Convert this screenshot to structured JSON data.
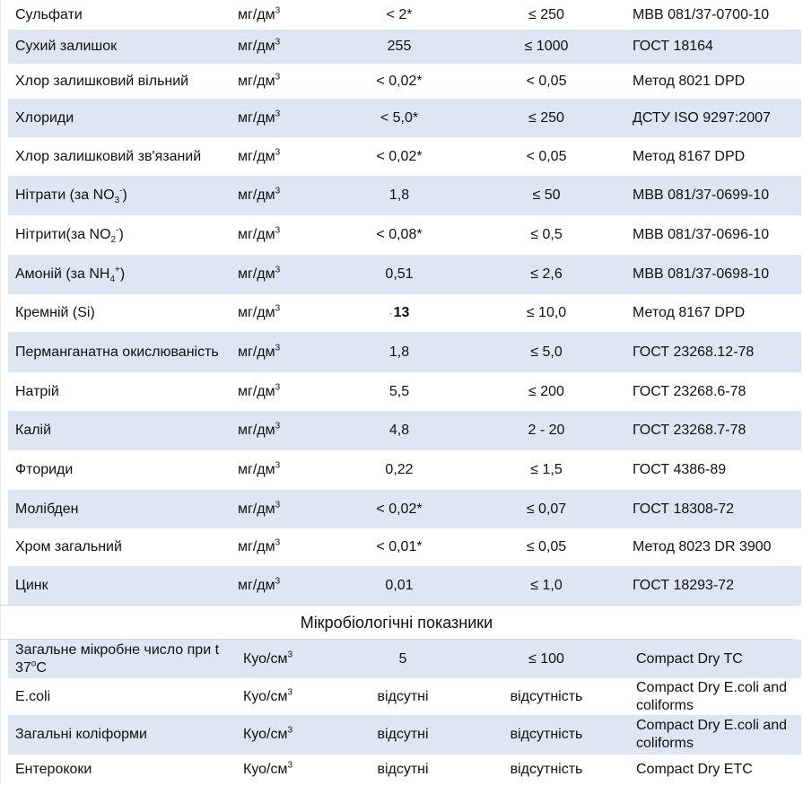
{
  "chemical": [
    {
      "name": "Сульфати",
      "unit": "мг/дм",
      "unit_sup": "3",
      "result": "< 2*",
      "norm": "≤ 250",
      "method": "МВВ 081/37-0700-10"
    },
    {
      "name": "Сухий залишок",
      "unit": "мг/дм",
      "unit_sup": "3",
      "result": "255",
      "norm": "≤ 1000",
      "method": "ГОСТ  18164"
    },
    {
      "name": "Хлор залишковий вільний",
      "unit": "мг/дм",
      "unit_sup": "3",
      "result": "< 0,02*",
      "norm": "< 0,05",
      "method": "Метод 8021 DPD"
    },
    {
      "name": "Хлориди",
      "unit": "мг/дм",
      "unit_sup": "3",
      "result": "< 5,0*",
      "norm": "≤ 250",
      "method": "ДСТУ ISO 9297:2007"
    },
    {
      "name": "Хлор залишковий зв'язаний",
      "unit": "мг/дм",
      "unit_sup": "3",
      "result": "< 0,02*",
      "norm": "< 0,05",
      "method": "Метод 8167 DPD"
    },
    {
      "name_pre": "Нітрати (за NO",
      "name_sub": "3",
      "name_sup": "-",
      "name_post": ")",
      "unit": "мг/дм",
      "unit_sup": "3",
      "result": "1,8",
      "norm": "≤ 50",
      "method": "МВВ 081/37-0699-10"
    },
    {
      "name_pre": "Нітрити(за NO",
      "name_sub": "2",
      "name_sup": "-",
      "name_post": ")",
      "unit": "мг/дм",
      "unit_sup": "3",
      "result": "< 0,08*",
      "norm": "≤ 0,5",
      "method": "МВВ 081/37-0696-10"
    },
    {
      "name_pre": "Амоній (за NH",
      "name_sub": "4",
      "name_sup": "+",
      "name_post": ")",
      "unit": "мг/дм",
      "unit_sup": "3",
      "result": "0,51",
      "norm": "≤ 2,6",
      "method": "МВВ 081/37-0698-10"
    },
    {
      "name": "Кремній (Si)",
      "unit": "мг/дм",
      "unit_sup": "3",
      "result": "13",
      "result_marker": "·",
      "norm": "≤ 10,0",
      "method": "Метод 8167 DPD"
    },
    {
      "name": "Перманганатна окислюваність",
      "unit": "мг/дм",
      "unit_sup": "3",
      "result": "1,8",
      "norm": "≤ 5,0",
      "method": "ГОСТ 23268.12-78"
    },
    {
      "name": "Натрій",
      "unit": "мг/дм",
      "unit_sup": "3",
      "result": "5,5",
      "norm": "≤ 200",
      "method": "ГОСТ 23268.6-78"
    },
    {
      "name": "Калій",
      "unit": "мг/дм",
      "unit_sup": "3",
      "result": "4,8",
      "norm": "2 - 20",
      "method": "ГОСТ 23268.7-78"
    },
    {
      "name": "Фториди",
      "unit": "мг/дм",
      "unit_sup": "3",
      "result": "0,22",
      "norm": "≤ 1,5",
      "method": "ГОСТ 4386-89"
    },
    {
      "name": "Молібден",
      "unit": "мг/дм",
      "unit_sup": "3",
      "result": "< 0,02*",
      "norm": "≤ 0,07",
      "method": "ГОСТ 18308-72"
    },
    {
      "name": "Хром загальний",
      "unit": "мг/дм",
      "unit_sup": "3",
      "result": "< 0,01*",
      "norm": "≤ 0,05",
      "method": "Метод 8023 DR 3900"
    },
    {
      "name": "Цинк",
      "unit": "мг/дм",
      "unit_sup": "3",
      "result": "0,01",
      "norm": "≤ 1,0",
      "method": "ГОСТ 18293-72"
    }
  ],
  "section_title": "Мікробіологічні показники",
  "micro": [
    {
      "name_pre": "Загальне мікробне число при t 37",
      "name_sup": "o",
      "name_post": "C",
      "unit": "Куо/см",
      "unit_sup": "3",
      "result": "5",
      "norm": "≤ 100",
      "method": "Compact Dry TC"
    },
    {
      "name": "E.coli",
      "unit": "Куо/см",
      "unit_sup": "3",
      "result": "відсутні",
      "norm": "відсутність",
      "method": "Compact Dry E.coli and coliforms"
    },
    {
      "name": "Загальні коліформи",
      "unit": "Куо/см",
      "unit_sup": "3",
      "result": "відсутні",
      "norm": "відсутність",
      "method": "Compact Dry E.coli and coliforms"
    },
    {
      "name": "Ентерококи",
      "unit": "Куо/см",
      "unit_sup": "3",
      "result": "відсутні",
      "norm": "відсутність",
      "method": "Compact Dry ETC"
    }
  ],
  "colors": {
    "row_shade": "#dde6f2",
    "marker": "#cc0000"
  }
}
